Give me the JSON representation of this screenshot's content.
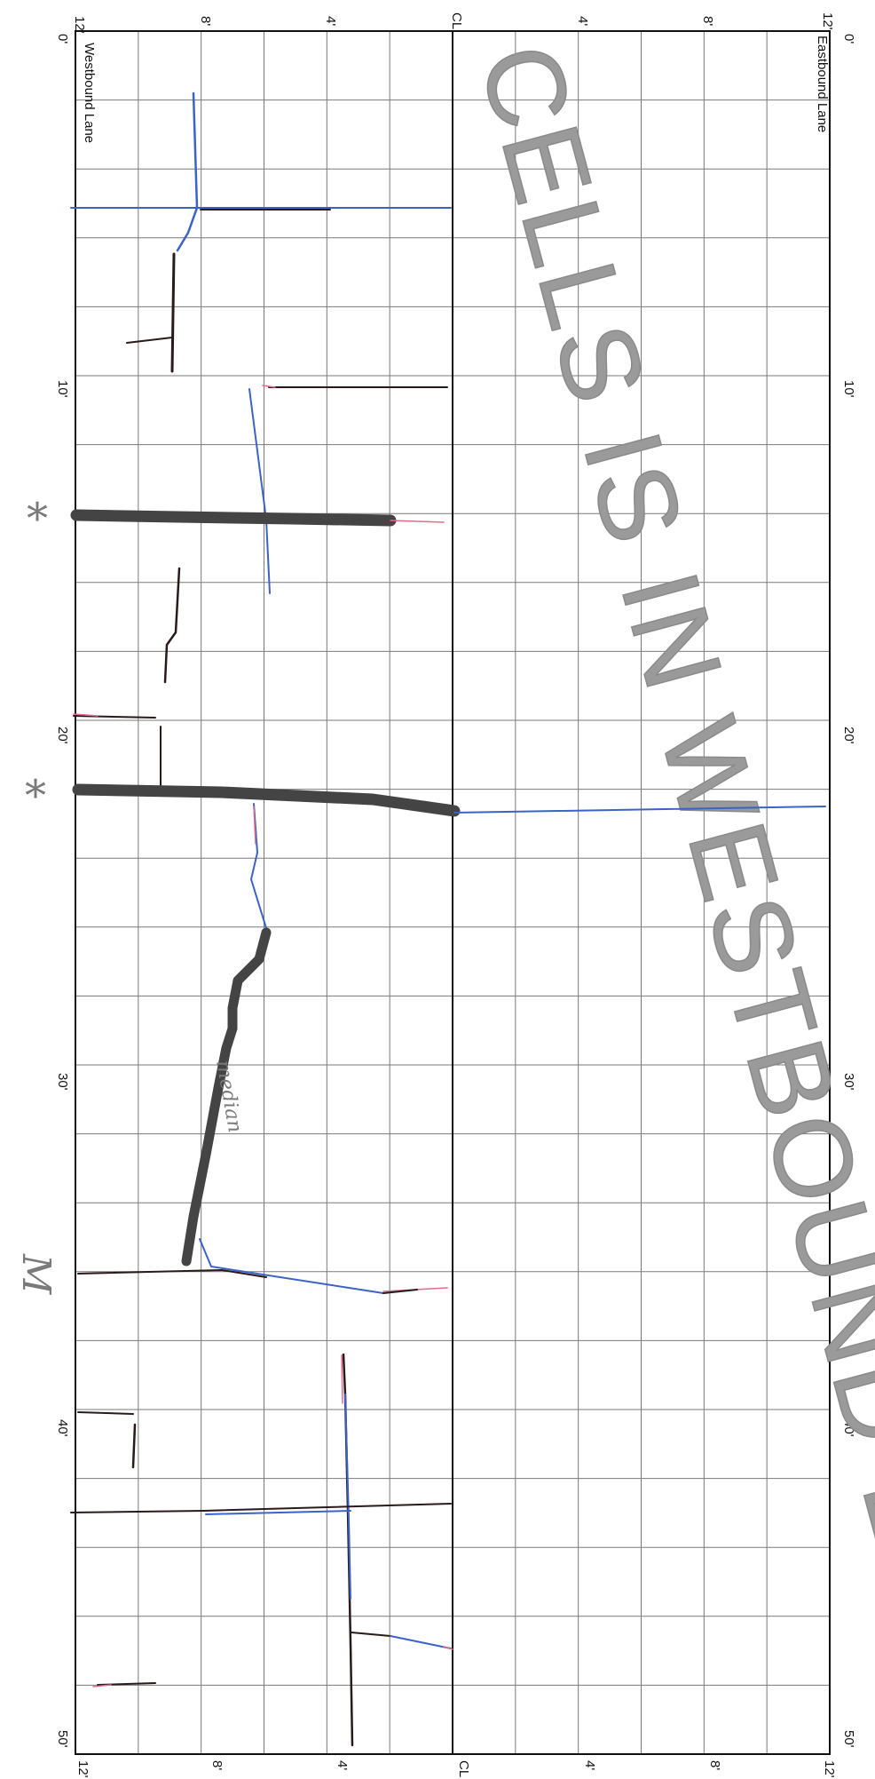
{
  "sheet": {
    "lane_left_title": "Westbound Lane",
    "lane_right_title": "Eastbound Lane",
    "banner_text": "CELLS IS IN WESTBOUND LANE",
    "top_axis": [
      "12'",
      "8'",
      "4'",
      "CL",
      "4'",
      "8'",
      "12'"
    ],
    "bottom_axis": [
      "12'",
      "8'",
      "4'",
      "CL",
      "4'",
      "8'",
      "12'"
    ],
    "length_axis_left": [
      "0'",
      "10'",
      "20'",
      "30'",
      "40'",
      "50'"
    ],
    "length_axis_right": [
      "0'",
      "10'",
      "20'",
      "30'",
      "40'",
      "50'"
    ],
    "annotations": {
      "asterisk_1": "*",
      "asterisk_2": "*",
      "margin_mark": "M",
      "median_note": "median"
    }
  },
  "colors": {
    "grid": "#7a7a7a",
    "blue_ink": "#3b63c7",
    "black_ink": "#2a1a1a",
    "pink_ink": "#e06b8b",
    "marker": "#444444",
    "banner": "#9a9a9a"
  }
}
